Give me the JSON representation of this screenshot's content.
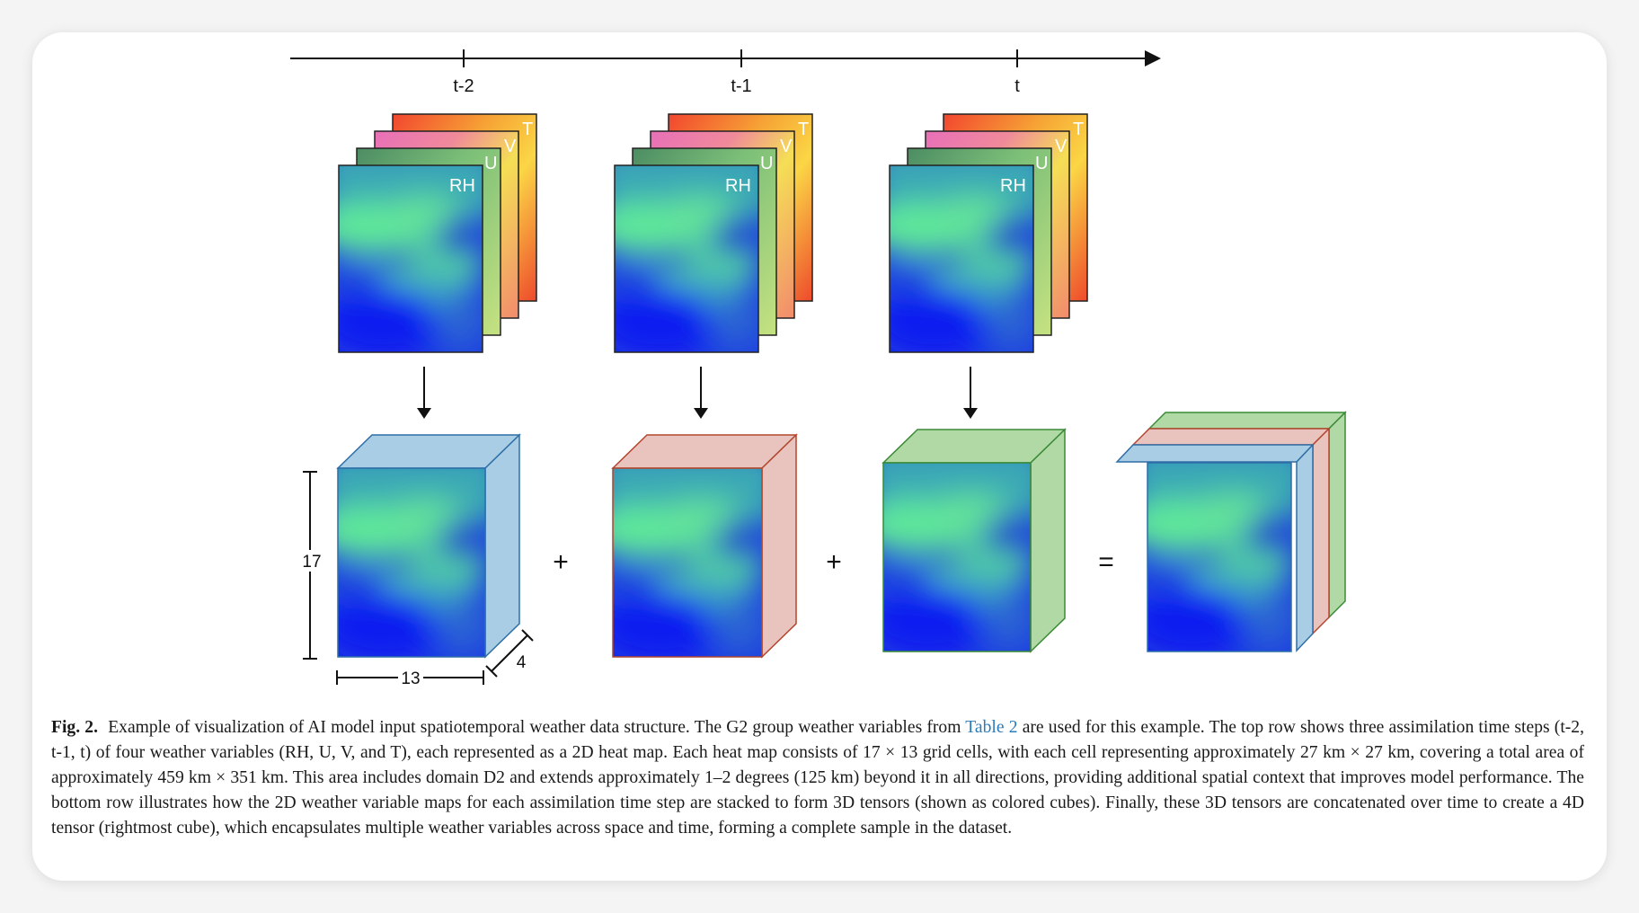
{
  "figure": {
    "timeline": {
      "ticks": [
        "t-2",
        "t-1",
        "t"
      ]
    },
    "layer_labels": [
      "RH",
      "U",
      "V",
      "T"
    ],
    "operators": [
      "+",
      "+",
      "="
    ],
    "dimensions": {
      "height": "17",
      "width": "13",
      "depth": "4"
    },
    "colors": {
      "cube_blue": "#a9cde4",
      "cube_red": "#e9c4bf",
      "cube_green": "#b1d9a6",
      "heatmap_low": "#0a1fe6",
      "heatmap_high": "#5fe89a"
    }
  },
  "caption": {
    "label": "Fig. 2.",
    "text_before_link": "Example of visualization of AI model input spatiotemporal weather data structure. The G2 group weather variables from",
    "link_text": "Table 2",
    "text_after_link": "are used for this example. The top row shows three assimilation time steps (t-2, t-1, t) of four weather variables (RH, U, V, and T), each represented as a 2D heat map. Each heat map consists of 17 × 13 grid cells, with each cell representing approximately 27 km × 27 km, covering a total area of approximately 459 km × 351 km. This area includes domain D2 and extends approximately 1–2 degrees (125 km) beyond it in all directions, providing additional spatial context that improves model performance. The bottom row illustrates how the 2D weather variable maps for each assimilation time step are stacked to form 3D tensors (shown as colored cubes). Finally, these 3D tensors are concatenated over time to create a 4D tensor (rightmost cube), which encapsulates multiple weather variables across space and time, forming a complete sample in the dataset."
  }
}
